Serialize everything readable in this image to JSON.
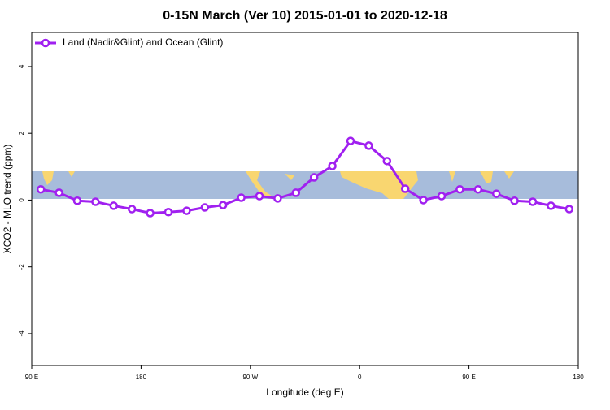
{
  "chart_data": {
    "type": "line",
    "title": "0-15N March (Ver 10)   2015-01-01 to 2020-12-18",
    "xlabel": "Longitude (deg E)",
    "ylabel": "XCO2 - MLO trend (ppm)",
    "x": [
      97.5,
      112.5,
      127.5,
      142.5,
      157.5,
      172.5,
      187.5,
      202.5,
      217.5,
      232.5,
      247.5,
      262.5,
      277.5,
      292.5,
      307.5,
      322.5,
      337.5,
      352.5,
      367.5,
      382.5,
      397.5,
      412.5,
      427.5,
      442.5,
      457.5,
      472.5,
      487.5,
      502.5,
      517.5,
      532.5
    ],
    "series": [
      {
        "name": "Land (Nadir&Glint) and Ocean (Glint)",
        "color": "#a020f0",
        "values": [
          0.32,
          0.22,
          -0.02,
          -0.05,
          -0.17,
          -0.27,
          -0.39,
          -0.36,
          -0.32,
          -0.22,
          -0.15,
          0.07,
          0.12,
          0.05,
          0.22,
          0.68,
          1.02,
          1.77,
          1.63,
          1.17,
          0.34,
          0.0,
          0.12,
          0.32,
          0.32,
          0.19,
          -0.02,
          -0.05,
          -0.17,
          -0.27
        ]
      }
    ],
    "xlim": [
      90,
      540
    ],
    "xticks": [
      {
        "value": 90,
        "label": "90 E"
      },
      180,
      {
        "value": 270,
        "label": "90 W"
      },
      {
        "value": 360,
        "label": "0"
      },
      {
        "value": 450,
        "label": "90 E"
      },
      {
        "value": 540,
        "label": "180"
      }
    ],
    "ylim": [
      -4.95,
      5.02
    ],
    "yticks": [
      -4,
      -2,
      0,
      2,
      4
    ],
    "legend": "top-left"
  }
}
